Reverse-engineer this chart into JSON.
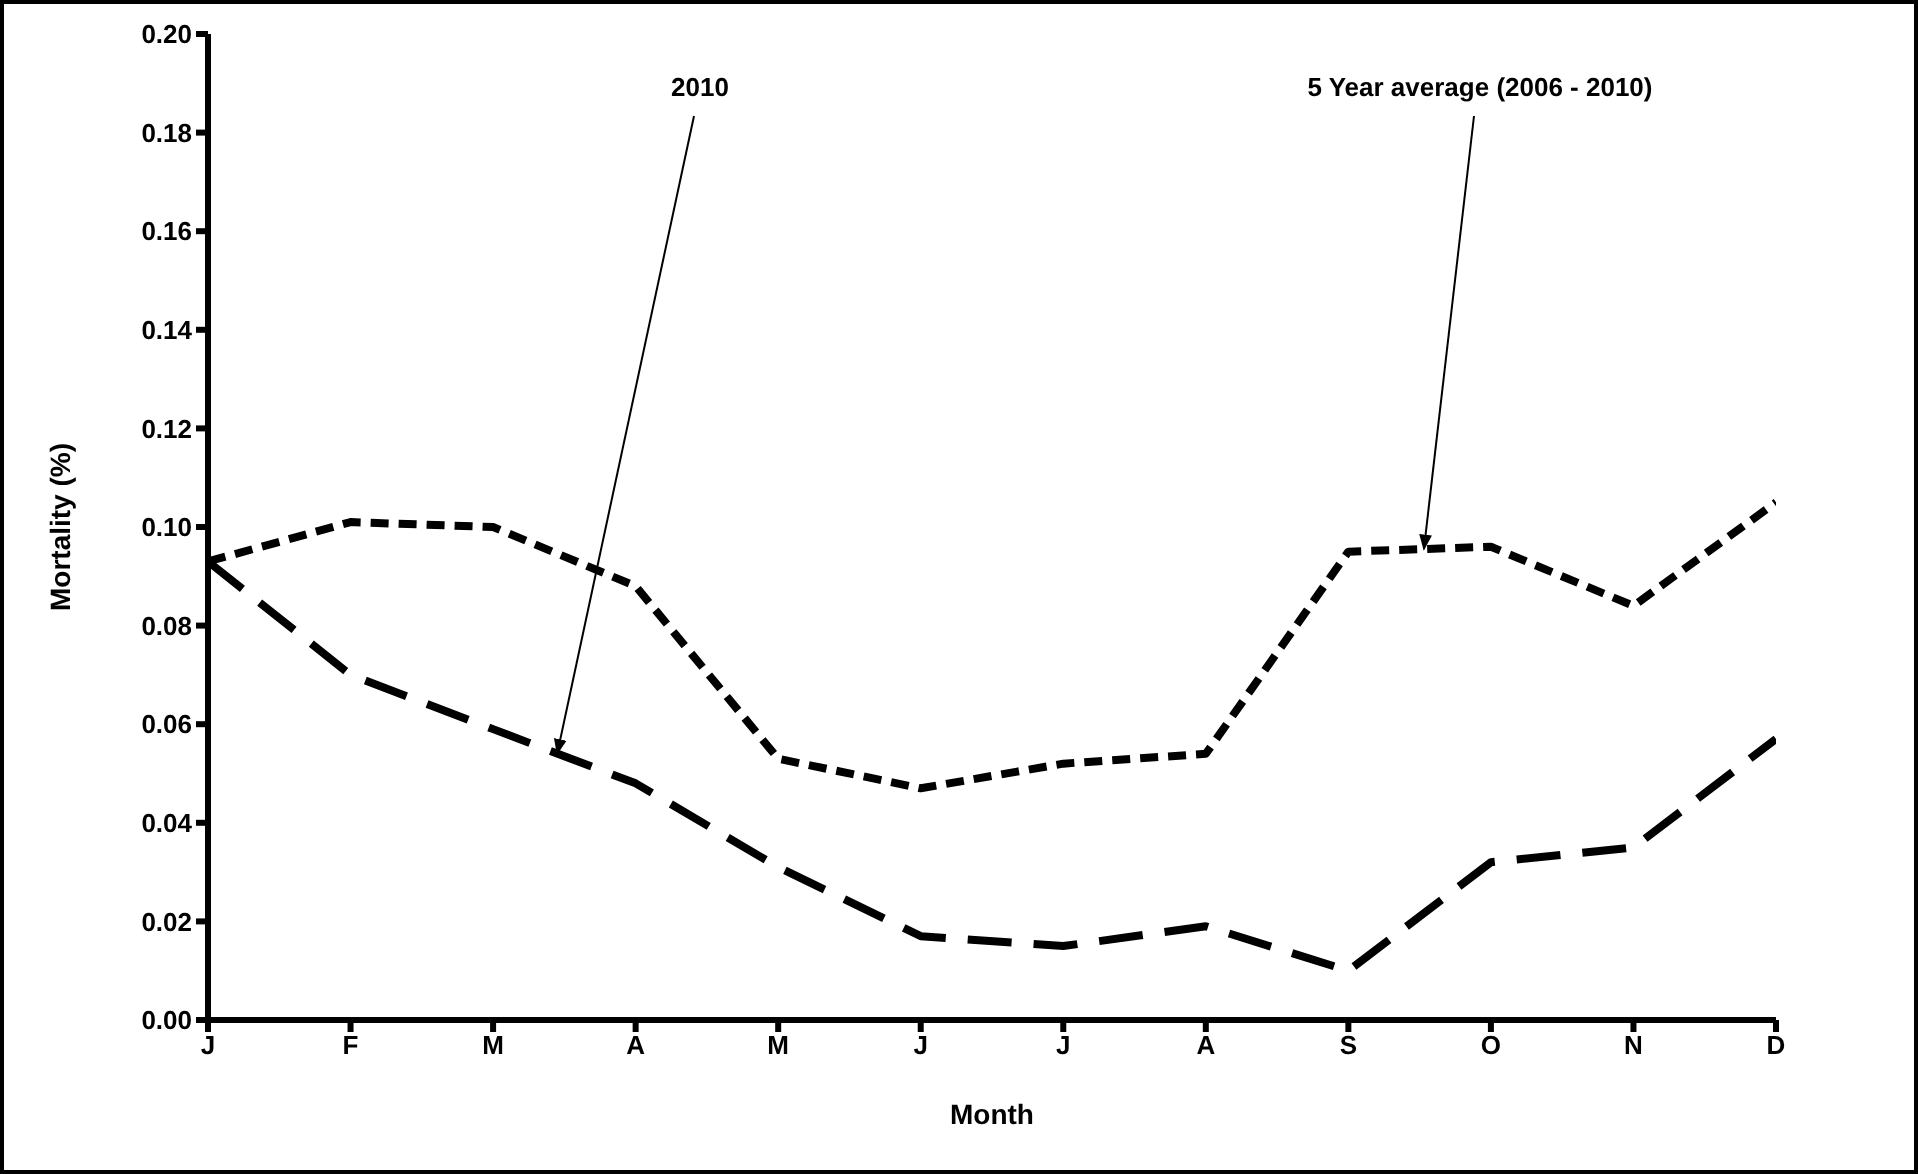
{
  "chart_data": {
    "type": "line",
    "xlabel": "Month",
    "ylabel": "Mortality (%)",
    "categories": [
      "J",
      "F",
      "M",
      "A",
      "M",
      "J",
      "J",
      "A",
      "S",
      "O",
      "N",
      "D"
    ],
    "series": [
      {
        "name": "5 Year average (2006 - 2010)",
        "color": "#000000",
        "line_style": "dotted",
        "values": [
          0.093,
          0.101,
          0.1,
          0.088,
          0.053,
          0.047,
          0.052,
          0.054,
          0.095,
          0.096,
          0.084,
          0.105
        ]
      },
      {
        "name": "2010",
        "color": "#000000",
        "line_style": "dashed",
        "values": [
          0.093,
          0.07,
          0.059,
          0.048,
          0.031,
          0.017,
          0.015,
          0.019,
          0.01,
          0.032,
          0.035,
          0.057
        ]
      }
    ],
    "ylim": [
      0,
      0.2
    ],
    "yticks": [
      {
        "value": 0,
        "label": "0.00"
      },
      {
        "value": 0.02,
        "label": "0.02"
      },
      {
        "value": 0.04,
        "label": "0.04"
      },
      {
        "value": 0.06,
        "label": "0.06"
      },
      {
        "value": 0.08,
        "label": "0.08"
      },
      {
        "value": 0.1,
        "label": "0.10"
      },
      {
        "value": 0.12,
        "label": "0.12"
      },
      {
        "value": 0.14,
        "label": "0.14"
      },
      {
        "value": 0.16,
        "label": "0.16"
      },
      {
        "value": 0.18,
        "label": "0.18"
      },
      {
        "value": 0.2,
        "label": "0.20"
      }
    ],
    "grid": false,
    "legend": false,
    "marker": "none"
  }
}
